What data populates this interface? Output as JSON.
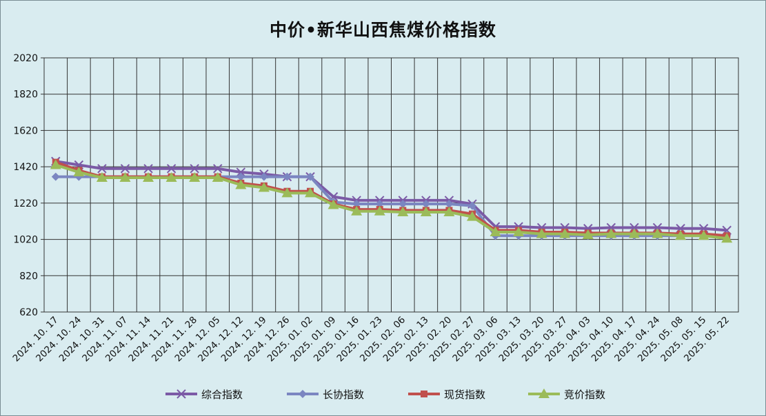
{
  "chart_data": {
    "type": "line",
    "title": "中价•新华山西焦煤价格指数",
    "xlabel": "",
    "ylabel": "",
    "ylim": [
      620,
      2020
    ],
    "yticks": [
      620,
      820,
      1020,
      1220,
      1420,
      1620,
      1820,
      2020
    ],
    "grid": true,
    "legend_position": "bottom",
    "categories": [
      "2024. 10. 17",
      "2024. 10. 24",
      "2024. 10. 31",
      "2024. 11. 07",
      "2024. 11. 14",
      "2024. 11. 21",
      "2024. 11. 28",
      "2024. 12. 05",
      "2024. 12. 12",
      "2024. 12. 19",
      "2024. 12. 26",
      "2025. 01. 02",
      "2025. 01. 09",
      "2025. 01. 16",
      "2025. 01. 23",
      "2025. 02. 06",
      "2025. 02. 13",
      "2025. 02. 20",
      "2025. 02. 27",
      "2025. 03. 06",
      "2025. 03. 13",
      "2025. 03. 20",
      "2025. 03. 27",
      "2025. 04. 03",
      "2025. 04. 10",
      "2025. 04. 17",
      "2025. 04. 24",
      "2025. 05. 08",
      "2025. 05. 15",
      "2025. 05. 22"
    ],
    "series": [
      {
        "name": "综合指数",
        "color": "#7b5aa6",
        "marker": "x",
        "values": [
          1450,
          1430,
          1410,
          1410,
          1410,
          1410,
          1410,
          1410,
          1390,
          1380,
          1365,
          1365,
          1255,
          1235,
          1235,
          1235,
          1235,
          1235,
          1215,
          1090,
          1090,
          1085,
          1085,
          1080,
          1085,
          1085,
          1085,
          1080,
          1080,
          1070
        ]
      },
      {
        "name": "长协指数",
        "color": "#7b86c1",
        "marker": "diamond",
        "values": [
          1365,
          1365,
          1365,
          1365,
          1365,
          1365,
          1365,
          1365,
          1365,
          1365,
          1365,
          1365,
          1225,
          1215,
          1215,
          1215,
          1215,
          1215,
          1205,
          1040,
          1040,
          1040,
          1040,
          1040,
          1040,
          1040,
          1040,
          1040,
          1040,
          1040
        ]
      },
      {
        "name": "现货指数",
        "color": "#c0504d",
        "marker": "square",
        "values": [
          1445,
          1400,
          1365,
          1365,
          1365,
          1365,
          1365,
          1365,
          1330,
          1315,
          1285,
          1285,
          1215,
          1185,
          1185,
          1180,
          1180,
          1180,
          1160,
          1070,
          1070,
          1060,
          1060,
          1055,
          1055,
          1055,
          1055,
          1050,
          1050,
          1040
        ]
      },
      {
        "name": "竞价指数",
        "color": "#9bbb59",
        "marker": "triangle",
        "values": [
          1430,
          1390,
          1360,
          1360,
          1360,
          1360,
          1360,
          1360,
          1320,
          1305,
          1275,
          1275,
          1210,
          1175,
          1175,
          1170,
          1170,
          1170,
          1145,
          1060,
          1060,
          1050,
          1050,
          1045,
          1050,
          1050,
          1050,
          1040,
          1040,
          1025
        ]
      }
    ]
  }
}
